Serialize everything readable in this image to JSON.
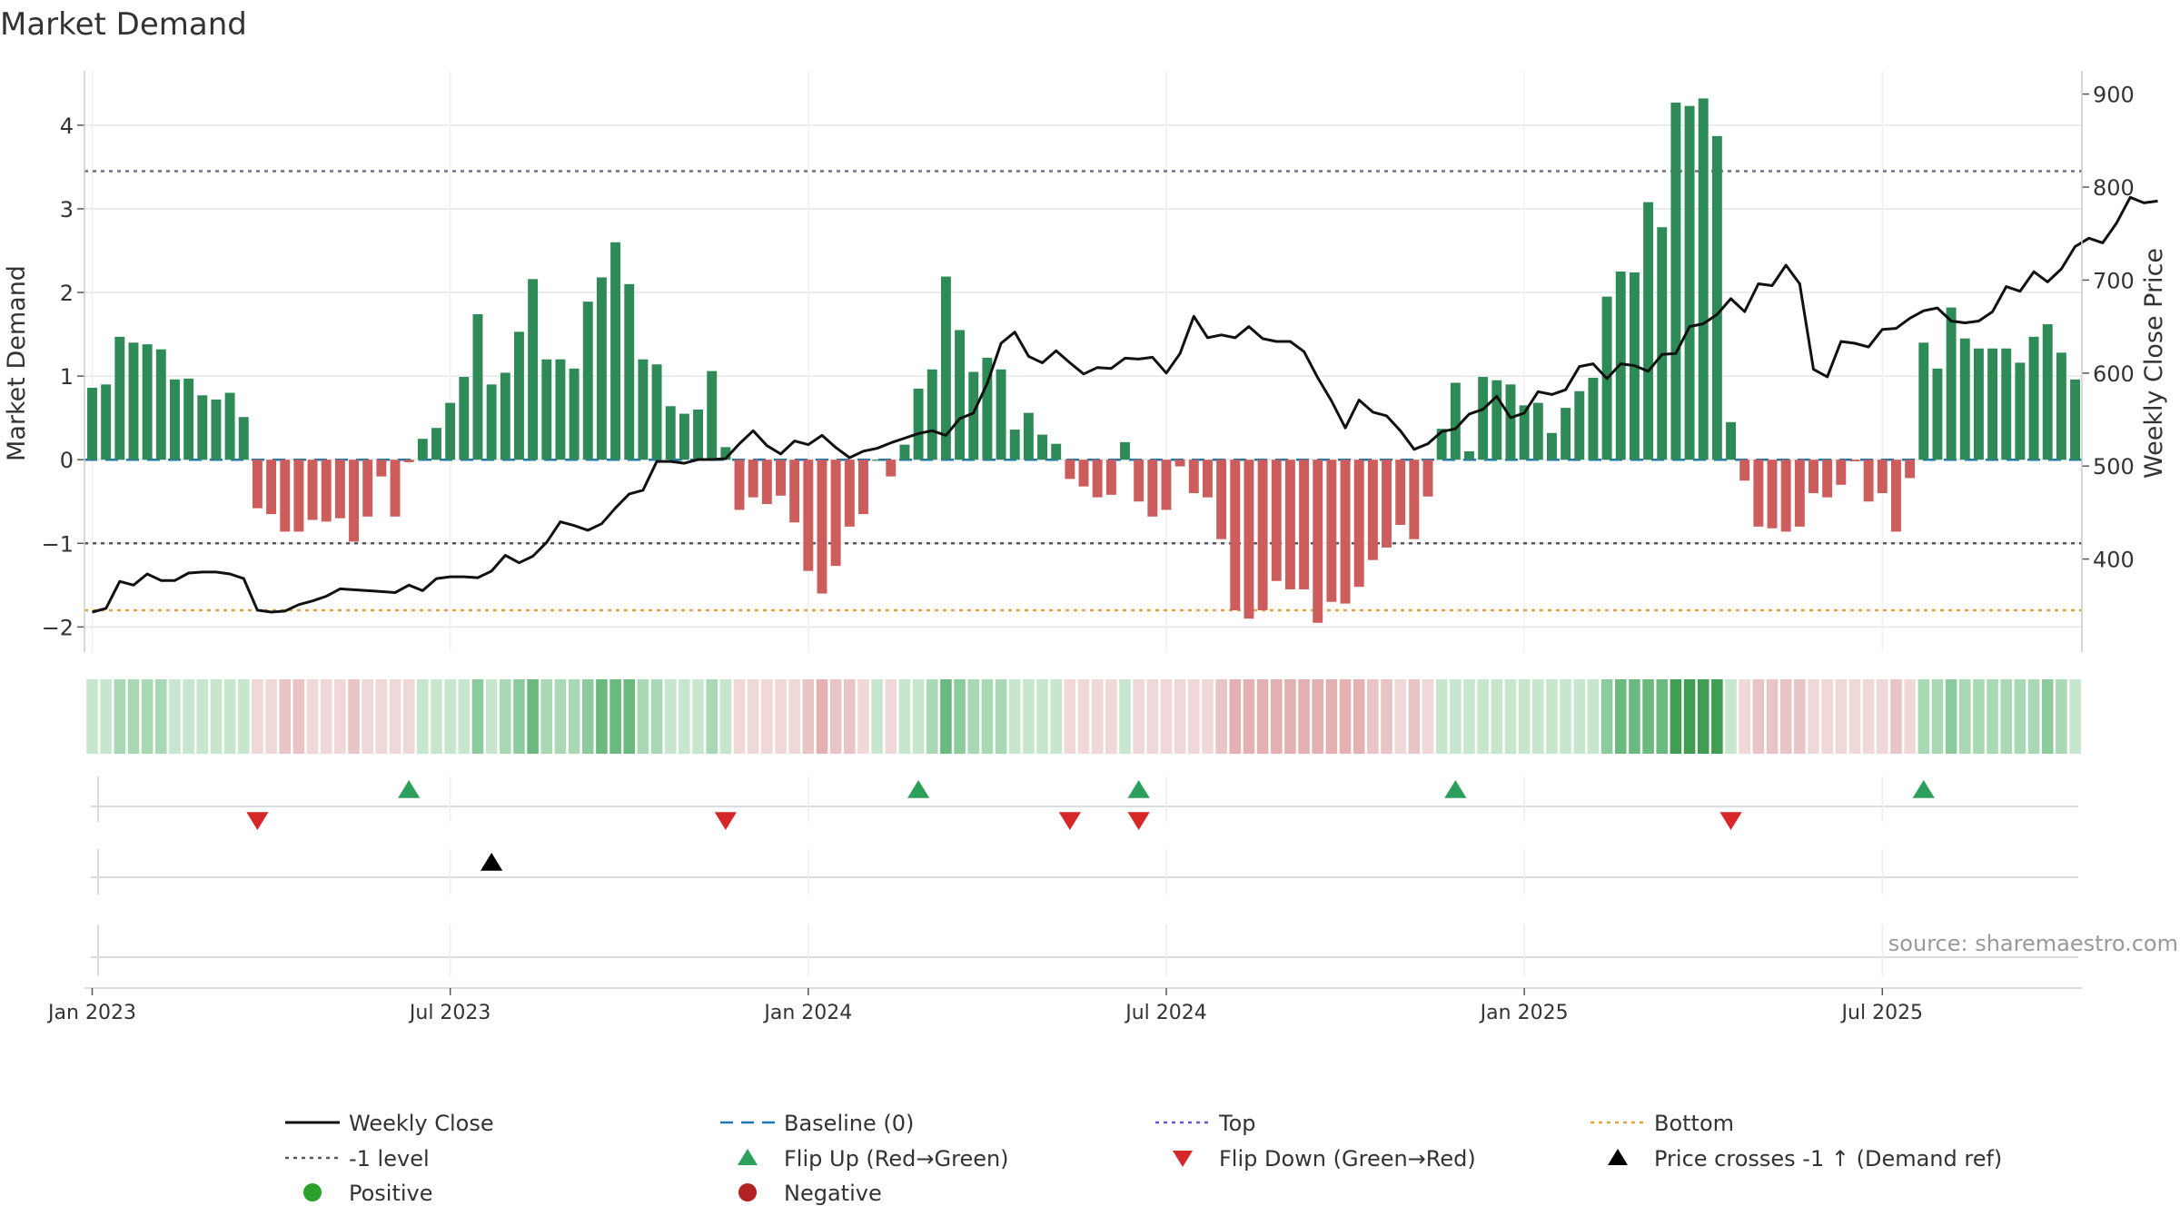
{
  "chart_data": {
    "type": "bar",
    "title": "Market Demand",
    "ylabel_left": "Market Demand",
    "ylabel_right": "Weekly Close Price",
    "source": "source: sharemaestro.com",
    "ylim_left": [
      -2.3,
      4.65
    ],
    "ylim_right": [
      300,
      925
    ],
    "yticks_left": [
      {
        "v": -2,
        "label": "−2"
      },
      {
        "v": -1,
        "label": "−1"
      },
      {
        "v": 0,
        "label": "0"
      },
      {
        "v": 1,
        "label": "1"
      },
      {
        "v": 2,
        "label": "2"
      },
      {
        "v": 3,
        "label": "3"
      },
      {
        "v": 4,
        "label": "4"
      }
    ],
    "yticks_right": [
      {
        "v": 400,
        "label": "400"
      },
      {
        "v": 500,
        "label": "500"
      },
      {
        "v": 600,
        "label": "600"
      },
      {
        "v": 700,
        "label": "700"
      },
      {
        "v": 800,
        "label": "800"
      },
      {
        "v": 900,
        "label": "900"
      }
    ],
    "xticks": [
      {
        "week": 1,
        "label": "Jan 2023"
      },
      {
        "week": 27,
        "label": "Jul 2023"
      },
      {
        "week": 53,
        "label": "Jan 2024"
      },
      {
        "week": 79,
        "label": "Jul 2024"
      },
      {
        "week": 105,
        "label": "Jan 2025"
      },
      {
        "week": 131,
        "label": "Jul 2025"
      }
    ],
    "reference_lines": {
      "top": 3.45,
      "level_minus_1": -1.0,
      "bottom": -1.8,
      "baseline": 0
    },
    "demand": [
      0.86,
      0.9,
      1.47,
      1.4,
      1.38,
      1.32,
      0.96,
      0.97,
      0.77,
      0.72,
      0.8,
      0.51,
      -0.58,
      -0.65,
      -0.86,
      -0.86,
      -0.72,
      -0.74,
      -0.7,
      -0.98,
      -0.68,
      -0.2,
      -0.68,
      -0.03,
      0.25,
      0.38,
      0.68,
      0.99,
      1.74,
      0.9,
      1.04,
      1.53,
      2.16,
      1.2,
      1.2,
      1.09,
      1.89,
      2.18,
      2.6,
      2.1,
      1.2,
      1.14,
      0.64,
      0.55,
      0.6,
      1.06,
      0.15,
      -0.6,
      -0.45,
      -0.53,
      -0.43,
      -0.75,
      -1.33,
      -1.6,
      -1.27,
      -0.8,
      -0.65,
      0,
      -0.2,
      0.18,
      0.85,
      1.08,
      2.19,
      1.55,
      1.05,
      1.22,
      1.08,
      0.36,
      0.56,
      0.3,
      0.19,
      -0.23,
      -0.32,
      -0.45,
      -0.42,
      0.21,
      -0.5,
      -0.68,
      -0.6,
      -0.08,
      -0.4,
      -0.45,
      -0.95,
      -1.8,
      -1.9,
      -1.8,
      -1.45,
      -1.55,
      -1.55,
      -1.95,
      -1.7,
      -1.72,
      -1.52,
      -1.2,
      -1.05,
      -0.78,
      -0.95,
      -0.44,
      0.37,
      0.92,
      0.1,
      0.99,
      0.95,
      0.9,
      0.65,
      0.68,
      0.32,
      0.62,
      0.82,
      0.98,
      1.95,
      2.25,
      2.24,
      3.08,
      2.78,
      4.27,
      4.23,
      4.32,
      3.87,
      0.45,
      -0.25,
      -0.8,
      -0.82,
      -0.86,
      -0.8,
      -0.4,
      -0.45,
      -0.3,
      -0.02,
      -0.5,
      -0.4,
      -0.86,
      -0.22,
      1.4,
      1.09,
      1.82,
      1.45,
      1.33,
      1.33,
      1.33,
      1.16,
      1.47,
      1.62,
      1.28,
      0.96
    ],
    "close": [
      343,
      347,
      376,
      372,
      384,
      377,
      377,
      385,
      386,
      386,
      384,
      379,
      345,
      343,
      344,
      351,
      355,
      360,
      368,
      367,
      366,
      365,
      364,
      372,
      366,
      379,
      381,
      381,
      380,
      387,
      404,
      396,
      403,
      418,
      440,
      436,
      431,
      438,
      455,
      470,
      474,
      505,
      505,
      503,
      507,
      507,
      508,
      524,
      538,
      522,
      513,
      527,
      523,
      533,
      520,
      509,
      516,
      519,
      525,
      530,
      535,
      538,
      533,
      551,
      557,
      589,
      632,
      644,
      618,
      611,
      624,
      611,
      599,
      606,
      605,
      616,
      615,
      617,
      600,
      621,
      661,
      638,
      641,
      638,
      650,
      637,
      634,
      634,
      623,
      595,
      570,
      541,
      571,
      558,
      554,
      538,
      518,
      524,
      537,
      540,
      556,
      561,
      575,
      552,
      557,
      580,
      577,
      582,
      607,
      610,
      594,
      610,
      608,
      602,
      620,
      621,
      650,
      653,
      663,
      680,
      666,
      696,
      694,
      716,
      696,
      604,
      596,
      634,
      632,
      628,
      647,
      648,
      659,
      667,
      670,
      656,
      654,
      656,
      666,
      693,
      688,
      709,
      698,
      712,
      736,
      745,
      740,
      761,
      789,
      783,
      785
    ]
  },
  "heat_strip": {
    "positive_colors": [
      "#c6e6cd",
      "#a9d9b4",
      "#8ccb9c",
      "#6ab97f",
      "#3f9e51"
    ],
    "negative_colors": [
      "#f1d8d8",
      "#e9c4c4",
      "#e3b1b1"
    ]
  },
  "events": {
    "flip_up_weeks": [
      24,
      61,
      77,
      100,
      134
    ],
    "flip_down_weeks": [
      13,
      47,
      72,
      77,
      120
    ],
    "price_cross_weeks": [
      30
    ]
  },
  "legend": [
    {
      "key": "weekly_close",
      "label": "Weekly Close",
      "color": "#111111"
    },
    {
      "key": "baseline",
      "label": "Baseline (0)",
      "color": "#1f77b4"
    },
    {
      "key": "top",
      "label": "Top",
      "color": "#5b5bd6"
    },
    {
      "key": "bottom",
      "label": "Bottom",
      "color": "#e6a23c"
    },
    {
      "key": "minus1",
      "label": "-1 level",
      "color": "#555566"
    },
    {
      "key": "flip_up",
      "label": "Flip Up (Red→Green)",
      "color": "#2ca05a"
    },
    {
      "key": "flip_down",
      "label": "Flip Down (Green→Red)",
      "color": "#d62728"
    },
    {
      "key": "price_cross",
      "label": "Price crosses -1 ↑ (Demand ref)",
      "color": "#000000"
    },
    {
      "key": "positive",
      "label": "Positive",
      "color": "#2ca02c"
    },
    {
      "key": "negative",
      "label": "Negative",
      "color": "#b22222"
    }
  ],
  "colors": {
    "positive_bar": "#2e8b57",
    "negative_bar": "#cd5c5c",
    "close_line": "#111111",
    "grid": "#e6e6e6"
  }
}
